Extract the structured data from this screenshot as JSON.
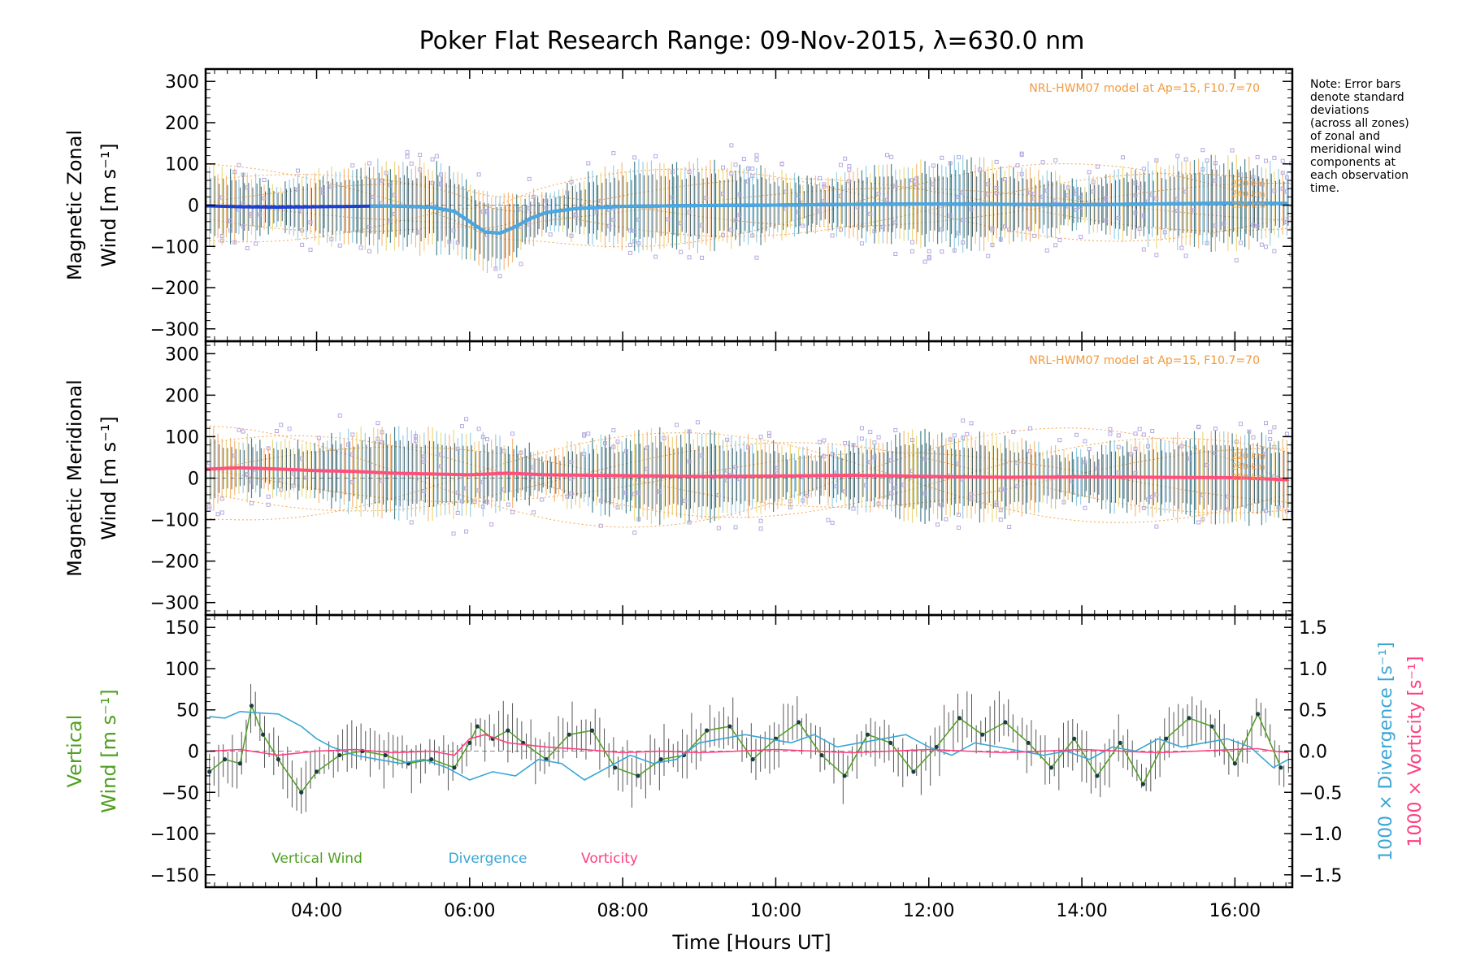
{
  "chart_data": {
    "title": "Poker Flat Research Range: 09-Nov-2015, λ=630.0 nm",
    "note": [
      "Note: Error bars",
      "denote standard",
      "deviations",
      "(across all zones)",
      "of zonal and",
      "meridional wind",
      "components at",
      "each observation",
      "time."
    ],
    "x_axis": {
      "label": "Time [Hours UT]",
      "range_hours": [
        2.55,
        16.75
      ],
      "tick_labels": [
        "04:00",
        "06:00",
        "08:00",
        "10:00",
        "12:00",
        "14:00",
        "16:00"
      ],
      "ticks_hours": [
        4,
        6,
        8,
        10,
        12,
        14,
        16
      ]
    },
    "panels": [
      {
        "id": "zonal",
        "type": "scatter",
        "ylabel": [
          "Magnetic Zonal",
          "Wind [m s⁻¹]"
        ],
        "ylim": [
          -330,
          330
        ],
        "yticks": [
          300,
          200,
          100,
          0,
          -100,
          -200,
          -300
        ],
        "ytick_labels": [
          "300",
          "200",
          "100",
          "0",
          "−100",
          "−200",
          "−300"
        ],
        "model_label": "NRL-HWM07 model at Ap=15, F10.7=70",
        "altitude_labels": [
          "220 km",
          "240 km",
          "250 km"
        ],
        "mean_color": "#1f3fd0",
        "mean_color2": "#4aa8e0",
        "mean_x": [
          2.6,
          3.0,
          3.5,
          4.0,
          4.5,
          5.0,
          5.5,
          5.8,
          6.0,
          6.2,
          6.4,
          6.6,
          6.8,
          7.0,
          7.4,
          8.0,
          9.0,
          10.0,
          11.0,
          12.0,
          13.0,
          14.0,
          15.0,
          16.0,
          16.7
        ],
        "mean_y": [
          -2,
          -4,
          -5,
          -4,
          -3,
          -2,
          -5,
          -15,
          -40,
          -65,
          -68,
          -52,
          -32,
          -18,
          -8,
          -3,
          -1,
          0,
          2,
          3,
          2,
          1,
          3,
          5,
          4
        ]
      },
      {
        "id": "meridional",
        "type": "scatter",
        "ylabel": [
          "Magnetic Meridional",
          "Wind [m s⁻¹]"
        ],
        "ylim": [
          -330,
          330
        ],
        "yticks": [
          300,
          200,
          100,
          0,
          -100,
          -200,
          -300
        ],
        "ytick_labels": [
          "300",
          "200",
          "100",
          "0",
          "−100",
          "−200",
          "−300"
        ],
        "model_label": "NRL-HWM07 model at Ap=15, F10.7=70",
        "altitude_labels": [
          "220 km",
          "240 km",
          "250 km"
        ],
        "mean_color": "#ff4f7a",
        "mean_x": [
          2.6,
          3.0,
          3.5,
          4.0,
          4.5,
          5.0,
          5.5,
          6.0,
          6.5,
          7.0,
          8.0,
          9.0,
          10.0,
          11.0,
          12.0,
          13.0,
          14.0,
          15.0,
          16.0,
          16.7
        ],
        "mean_y": [
          22,
          25,
          22,
          18,
          16,
          12,
          10,
          8,
          12,
          8,
          6,
          4,
          5,
          7,
          4,
          2,
          3,
          2,
          1,
          -4
        ]
      },
      {
        "id": "vertical",
        "type": "line",
        "ylabel": [
          "Vertical",
          "Wind [m s⁻¹]"
        ],
        "ylim": [
          -165,
          165
        ],
        "yticks": [
          150,
          100,
          50,
          0,
          -50,
          -100,
          -150
        ],
        "ytick_labels": [
          "150",
          "100",
          "50",
          "0",
          "−50",
          "−100",
          "−150"
        ],
        "right_axis": {
          "ylim": [
            -1.65,
            1.65
          ],
          "yticks": [
            1.5,
            1.0,
            0.5,
            0.0,
            -0.5,
            -1.0,
            -1.5
          ],
          "ytick_labels": [
            "1.5",
            "1.0",
            "0.5",
            "0.0",
            "−0.5",
            "−1.0",
            "−1.5"
          ],
          "label_divergence": "1000 × Divergence [s⁻¹]",
          "label_vorticity": "1000 × Vorticity [s⁻¹]"
        },
        "legend": [
          {
            "name": "Vertical Wind",
            "color": "#4fa020"
          },
          {
            "name": "Divergence",
            "color": "#3aa6d6"
          },
          {
            "name": "Vorticity",
            "color": "#ff3f7f"
          }
        ],
        "series": [
          {
            "name": "Vertical Wind",
            "color": "#4fa020",
            "x": [
              2.6,
              2.8,
              3.0,
              3.15,
              3.3,
              3.5,
              3.8,
              4.0,
              4.3,
              4.6,
              4.9,
              5.2,
              5.5,
              5.8,
              6.0,
              6.1,
              6.3,
              6.5,
              6.7,
              7.0,
              7.3,
              7.6,
              7.9,
              8.2,
              8.5,
              8.8,
              9.1,
              9.4,
              9.7,
              10.0,
              10.3,
              10.6,
              10.9,
              11.2,
              11.5,
              11.8,
              12.1,
              12.4,
              12.7,
              13.0,
              13.3,
              13.6,
              13.9,
              14.2,
              14.5,
              14.8,
              15.1,
              15.4,
              15.7,
              16.0,
              16.3,
              16.6
            ],
            "y": [
              -25,
              -10,
              -15,
              55,
              20,
              -10,
              -50,
              -25,
              -5,
              0,
              -5,
              -15,
              -10,
              -20,
              10,
              30,
              15,
              25,
              10,
              -10,
              20,
              25,
              -20,
              -30,
              -10,
              -5,
              25,
              30,
              -10,
              15,
              35,
              -5,
              -30,
              20,
              10,
              -25,
              5,
              40,
              20,
              35,
              10,
              -20,
              15,
              -30,
              10,
              -40,
              15,
              40,
              30,
              -15,
              45,
              -20
            ]
          },
          {
            "name": "Divergence",
            "color": "#3aa6d6",
            "x": [
              2.6,
              2.8,
              3.0,
              3.3,
              3.5,
              3.8,
              4.0,
              4.2,
              4.5,
              4.8,
              5.1,
              5.4,
              5.7,
              6.0,
              6.3,
              6.6,
              6.9,
              7.2,
              7.5,
              7.8,
              8.1,
              8.4,
              8.7,
              9.0,
              9.3,
              9.6,
              9.9,
              10.2,
              10.5,
              10.8,
              11.1,
              11.4,
              11.7,
              12.0,
              12.3,
              12.6,
              12.9,
              13.2,
              13.5,
              13.8,
              14.1,
              14.4,
              14.7,
              15.0,
              15.3,
              15.6,
              15.9,
              16.2,
              16.5,
              16.7
            ],
            "y": [
              0.42,
              0.4,
              0.48,
              0.46,
              0.45,
              0.3,
              0.15,
              0.05,
              -0.05,
              -0.1,
              -0.15,
              -0.1,
              -0.2,
              -0.35,
              -0.25,
              -0.3,
              -0.1,
              -0.15,
              -0.35,
              -0.2,
              -0.05,
              -0.15,
              -0.1,
              0.1,
              0.15,
              0.2,
              0.15,
              0.1,
              0.2,
              0.05,
              0.1,
              0.15,
              0.2,
              0.05,
              -0.05,
              0.1,
              0.05,
              0.0,
              -0.05,
              0.0,
              -0.1,
              0.05,
              0.0,
              0.15,
              0.05,
              0.1,
              0.15,
              0.05,
              -0.2,
              -0.1
            ]
          },
          {
            "name": "Vorticity",
            "color": "#ff3f7f",
            "x": [
              2.6,
              3.0,
              3.5,
              4.0,
              4.5,
              5.0,
              5.5,
              5.8,
              6.0,
              6.2,
              6.5,
              7.0,
              7.5,
              8.0,
              8.5,
              9.0,
              9.5,
              10.0,
              10.5,
              11.0,
              11.5,
              12.0,
              12.5,
              13.0,
              13.5,
              14.0,
              14.5,
              15.0,
              15.5,
              16.0,
              16.3,
              16.5,
              16.7
            ],
            "y": [
              0.0,
              0.02,
              -0.05,
              0.0,
              0.02,
              -0.02,
              0.0,
              -0.05,
              0.15,
              0.2,
              0.1,
              0.05,
              0.02,
              -0.02,
              0.0,
              -0.02,
              0.0,
              0.02,
              0.0,
              -0.02,
              0.0,
              0.02,
              0.0,
              -0.02,
              0.0,
              0.02,
              0.0,
              -0.02,
              0.0,
              0.02,
              0.03,
              0.0,
              -0.02
            ]
          }
        ]
      }
    ]
  }
}
